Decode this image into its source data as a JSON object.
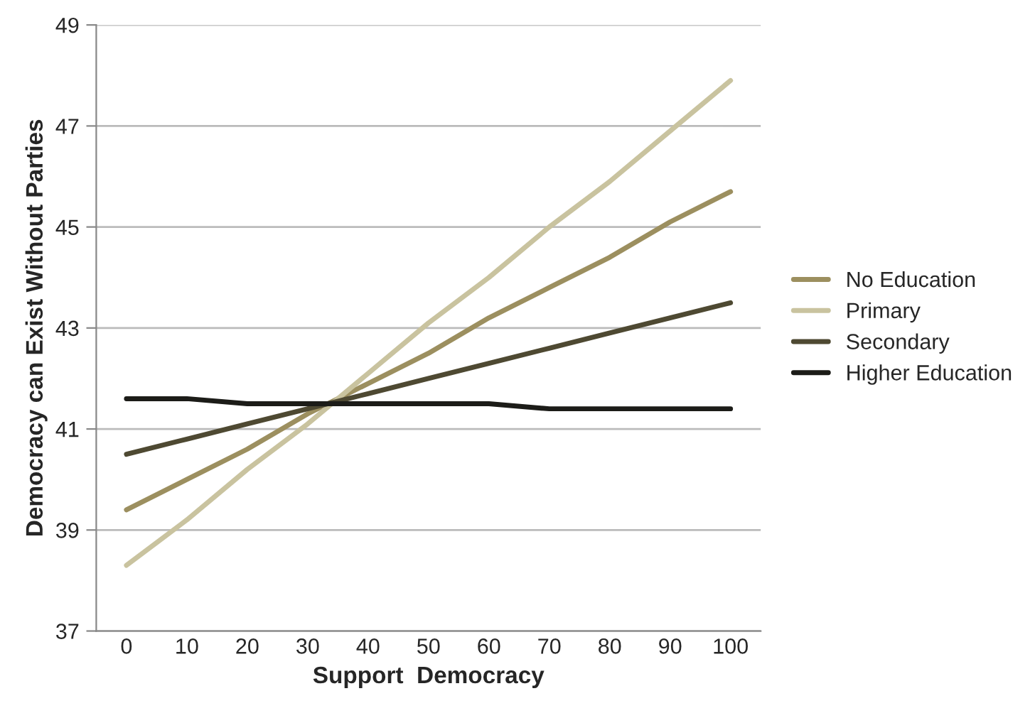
{
  "chart_data": {
    "type": "line",
    "xlabel": "Support  Democracy",
    "ylabel": "Democracy can Exist Without Parties",
    "categories": [
      "0",
      "10",
      "20",
      "30",
      "40",
      "50",
      "60",
      "70",
      "80",
      "90",
      "100"
    ],
    "series": [
      {
        "name": "No Education",
        "color": "#9c8f5f",
        "values": [
          39.4,
          40.0,
          40.6,
          41.3,
          41.9,
          42.5,
          43.2,
          43.8,
          44.4,
          45.1,
          45.7
        ]
      },
      {
        "name": "Primary",
        "color": "#c9c39f",
        "values": [
          38.3,
          39.2,
          40.2,
          41.1,
          42.1,
          43.1,
          44.0,
          45.0,
          45.9,
          46.9,
          47.9
        ]
      },
      {
        "name": "Secondary",
        "color": "#4e4932",
        "values": [
          40.5,
          40.8,
          41.1,
          41.4,
          41.7,
          42.0,
          42.3,
          42.6,
          42.9,
          43.2,
          43.5
        ]
      },
      {
        "name": "Higher Education",
        "color": "#1c1c18",
        "values": [
          41.6,
          41.6,
          41.5,
          41.5,
          41.5,
          41.5,
          41.5,
          41.4,
          41.4,
          41.4,
          41.4
        ]
      }
    ],
    "ylim": [
      37,
      49
    ],
    "yticks": [
      37,
      39,
      41,
      43,
      45,
      47,
      49
    ],
    "grid": "y",
    "legend": "right",
    "marker": "none",
    "line_style": "solid"
  }
}
